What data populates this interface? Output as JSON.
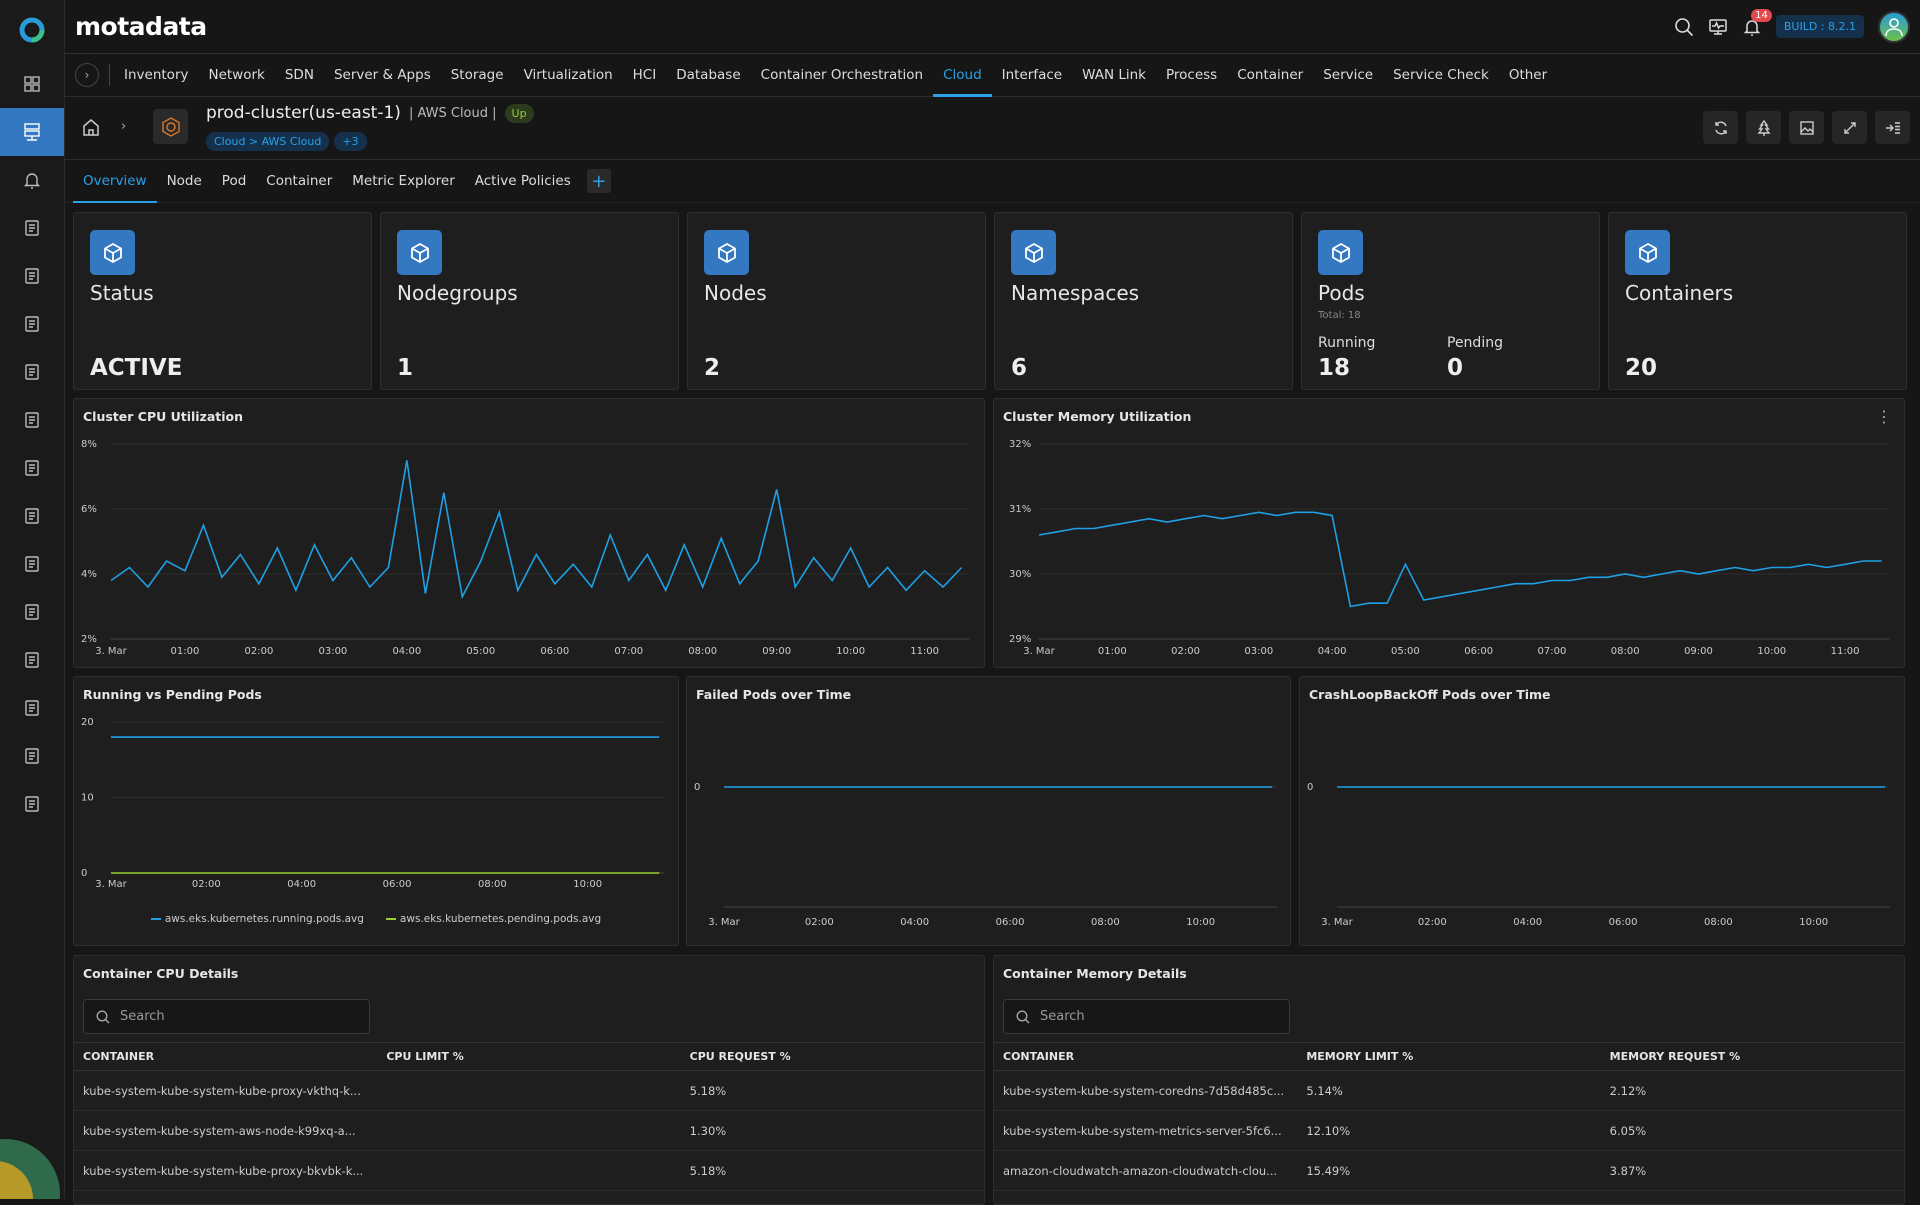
{
  "app": {
    "brand": "motadata",
    "build": "BUILD : 8.2.1",
    "notifications": "14"
  },
  "sidebar": {
    "items": [
      {
        "icon": "dashboard-icon"
      },
      {
        "icon": "inventory-icon",
        "active": true
      },
      {
        "icon": "alert-bell-icon"
      },
      {
        "icon": "search-doc-icon"
      },
      {
        "icon": "report-icon"
      },
      {
        "icon": "topology-icon"
      },
      {
        "icon": "monitor-gear-icon"
      },
      {
        "icon": "flow-icon"
      },
      {
        "icon": "metric-chart-icon"
      },
      {
        "icon": "log-file-icon"
      },
      {
        "icon": "screen-code-icon"
      },
      {
        "icon": "device-icon"
      },
      {
        "icon": "network-config-icon"
      },
      {
        "icon": "binoculars-icon"
      },
      {
        "icon": "audit-icon"
      },
      {
        "icon": "settings-gear-icon"
      }
    ]
  },
  "nav": {
    "items": [
      "Inventory",
      "Network",
      "SDN",
      "Server & Apps",
      "Storage",
      "Virtualization",
      "HCI",
      "Database",
      "Container Orchestration",
      "Cloud",
      "Interface",
      "WAN Link",
      "Process",
      "Container",
      "Service",
      "Service Check",
      "Other"
    ],
    "active": "Cloud"
  },
  "header": {
    "title": "prod-cluster(us-east-1)",
    "type": "| AWS Cloud |",
    "status": "Up",
    "breadcrumb": "Cloud > AWS Cloud",
    "more_tags": "+3"
  },
  "tabs": {
    "items": [
      "Overview",
      "Node",
      "Pod",
      "Container",
      "Metric Explorer",
      "Active Policies"
    ],
    "active": "Overview",
    "add": "+"
  },
  "kpis": [
    {
      "label": "Status",
      "value": "ACTIVE",
      "icon": "cluster-status-icon"
    },
    {
      "label": "Nodegroups",
      "value": "1",
      "icon": "nodegroups-icon"
    },
    {
      "label": "Nodes",
      "value": "2",
      "icon": "nodes-icon"
    },
    {
      "label": "Namespaces",
      "value": "6",
      "icon": "namespace-icon"
    },
    {
      "label": "Pods",
      "total": "Total: 18",
      "running_label": "Running",
      "running": "18",
      "pending_label": "Pending",
      "pending": "0",
      "icon": "pods-cube-icon"
    },
    {
      "label": "Containers",
      "value": "20",
      "icon": "containers-icon"
    }
  ],
  "colors": {
    "accent": "#2aa0e8",
    "icon_bg": "#3378c1",
    "running": "#1ea0e6",
    "pending": "#9acd32",
    "up": "#8fcf3c"
  },
  "chart_data": [
    {
      "id": "cpu",
      "type": "line",
      "title": "Cluster CPU Utilization",
      "x_unit": "hours since 3. Mar 00:00",
      "ylim": [
        2,
        8
      ],
      "yticks": [
        "2%",
        "4%",
        "6%",
        "8%"
      ],
      "ytick_values": [
        2,
        4,
        6,
        8
      ],
      "xticks": [
        "3. Mar",
        "01:00",
        "02:00",
        "03:00",
        "04:00",
        "05:00",
        "06:00",
        "07:00",
        "08:00",
        "09:00",
        "10:00",
        "11:00"
      ],
      "xtick_values": [
        0,
        1,
        2,
        3,
        4,
        5,
        6,
        7,
        8,
        9,
        10,
        11
      ],
      "xlim": [
        0,
        11.6
      ],
      "series": [
        {
          "values": [
            3.8,
            4.2,
            3.6,
            4.4,
            4.1,
            5.5,
            3.9,
            4.6,
            3.7,
            4.8,
            3.5,
            4.9,
            3.8,
            4.5,
            3.6,
            4.2,
            7.5,
            3.4,
            6.5,
            3.3,
            4.4,
            5.9,
            3.5,
            4.6,
            3.7,
            4.3,
            3.6,
            5.2,
            3.8,
            4.6,
            3.5,
            4.9,
            3.6,
            5.1,
            3.7,
            4.4,
            6.6,
            3.6,
            4.5,
            3.8,
            4.8,
            3.6,
            4.2,
            3.5,
            4.1,
            3.6,
            4.2
          ],
          "step": 0.25
        }
      ]
    },
    {
      "id": "mem",
      "type": "line",
      "title": "Cluster Memory Utilization",
      "ylim": [
        29,
        32
      ],
      "yticks": [
        "29%",
        "30%",
        "31%",
        "32%"
      ],
      "ytick_values": [
        29,
        30,
        31,
        32
      ],
      "xticks": [
        "3. Mar",
        "01:00",
        "02:00",
        "03:00",
        "04:00",
        "05:00",
        "06:00",
        "07:00",
        "08:00",
        "09:00",
        "10:00",
        "11:00"
      ],
      "xtick_values": [
        0,
        1,
        2,
        3,
        4,
        5,
        6,
        7,
        8,
        9,
        10,
        11
      ],
      "xlim": [
        0,
        11.6
      ],
      "series": [
        {
          "values": [
            30.6,
            30.65,
            30.7,
            30.7,
            30.75,
            30.8,
            30.85,
            30.8,
            30.85,
            30.9,
            30.85,
            30.9,
            30.95,
            30.9,
            30.95,
            30.95,
            30.9,
            29.5,
            29.55,
            29.55,
            30.15,
            29.6,
            29.65,
            29.7,
            29.75,
            29.8,
            29.85,
            29.85,
            29.9,
            29.9,
            29.95,
            29.95,
            30.0,
            29.95,
            30.0,
            30.05,
            30.0,
            30.05,
            30.1,
            30.05,
            30.1,
            30.1,
            30.15,
            30.1,
            30.15,
            30.2,
            30.2
          ],
          "step": 0.25
        }
      ]
    },
    {
      "id": "pods",
      "type": "line",
      "title": "Running vs Pending Pods",
      "ylim": [
        0,
        20
      ],
      "yticks": [
        "0",
        "10",
        "20"
      ],
      "ytick_values": [
        0,
        10,
        20
      ],
      "xticks": [
        "3. Mar",
        "02:00",
        "04:00",
        "06:00",
        "08:00",
        "10:00"
      ],
      "xtick_values": [
        0,
        2,
        4,
        6,
        8,
        10
      ],
      "xlim": [
        0,
        11.6
      ],
      "series": [
        {
          "name": "aws.eks.kubernetes.running.pods.avg",
          "color": "#1ea0e6",
          "values": [
            18,
            18
          ],
          "x": [
            0,
            11.5
          ]
        },
        {
          "name": "aws.eks.kubernetes.pending.pods.avg",
          "color": "#9acd32",
          "values": [
            0,
            0
          ],
          "x": [
            0,
            11.5
          ]
        }
      ]
    },
    {
      "id": "failed",
      "type": "line",
      "title": "Failed Pods over Time",
      "ylim": [
        -1,
        1
      ],
      "yticks": [
        "0"
      ],
      "ytick_values": [
        0
      ],
      "xticks": [
        "3. Mar",
        "02:00",
        "04:00",
        "06:00",
        "08:00",
        "10:00"
      ],
      "xtick_values": [
        0,
        2,
        4,
        6,
        8,
        10
      ],
      "xlim": [
        0,
        11.6
      ],
      "series": [
        {
          "values": [
            0,
            0
          ],
          "x": [
            0,
            11.5
          ]
        }
      ]
    },
    {
      "id": "crash",
      "type": "line",
      "title": "CrashLoopBackOff Pods over Time",
      "ylim": [
        -1,
        1
      ],
      "yticks": [
        "0"
      ],
      "ytick_values": [
        0
      ],
      "xticks": [
        "3. Mar",
        "02:00",
        "04:00",
        "06:00",
        "08:00",
        "10:00"
      ],
      "xtick_values": [
        0,
        2,
        4,
        6,
        8,
        10
      ],
      "xlim": [
        0,
        11.6
      ],
      "series": [
        {
          "values": [
            0,
            0
          ],
          "x": [
            0,
            11.5
          ]
        }
      ]
    }
  ],
  "cpu_table": {
    "title": "Container CPU Details",
    "search_placeholder": "Search",
    "columns": [
      "CONTAINER",
      "CPU LIMIT %",
      "CPU REQUEST %"
    ],
    "rows": [
      [
        "kube-system-kube-system-kube-proxy-vkthq-k...",
        "",
        "5.18%"
      ],
      [
        "kube-system-kube-system-aws-node-k99xq-a...",
        "",
        "1.30%"
      ],
      [
        "kube-system-kube-system-kube-proxy-bkvbk-k...",
        "",
        "5.18%"
      ]
    ]
  },
  "mem_table": {
    "title": "Container Memory Details",
    "search_placeholder": "Search",
    "columns": [
      "CONTAINER",
      "MEMORY LIMIT %",
      "MEMORY REQUEST %"
    ],
    "rows": [
      [
        "kube-system-kube-system-coredns-7d58d485c...",
        "5.14%",
        "2.12%"
      ],
      [
        "kube-system-kube-system-metrics-server-5fc6...",
        "12.10%",
        "6.05%"
      ],
      [
        "amazon-cloudwatch-amazon-cloudwatch-clou...",
        "15.49%",
        "3.87%"
      ]
    ]
  }
}
